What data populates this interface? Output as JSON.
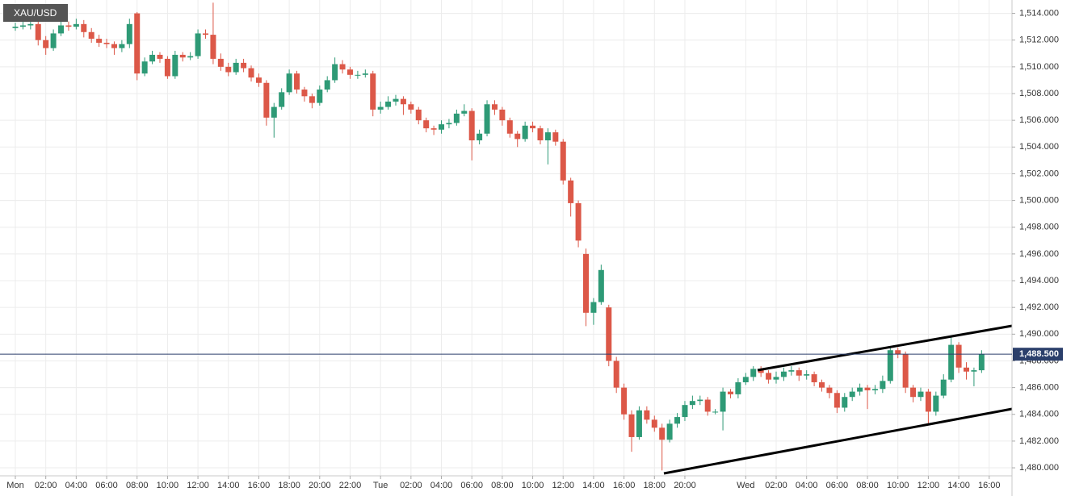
{
  "chart_data": {
    "type": "candlestick",
    "title": "XAU/USD",
    "up_color": "#2e9a76",
    "down_color": "#dc5848",
    "grid": true,
    "categories": [
      "Mon",
      null,
      null,
      null,
      "02:00",
      null,
      null,
      null,
      "04:00",
      null,
      null,
      null,
      "06:00",
      null,
      null,
      null,
      "08:00",
      null,
      null,
      null,
      "10:00",
      null,
      null,
      null,
      "12:00",
      null,
      null,
      null,
      "14:00",
      null,
      null,
      null,
      "16:00",
      null,
      null,
      null,
      "18:00",
      null,
      null,
      null,
      "20:00",
      null,
      null,
      null,
      "22:00",
      null,
      null,
      null,
      "Tue",
      null,
      null,
      null,
      "02:00",
      null,
      null,
      null,
      "04:00",
      null,
      null,
      null,
      "06:00",
      null,
      null,
      null,
      "08:00",
      null,
      null,
      null,
      "10:00",
      null,
      null,
      null,
      "12:00",
      null,
      null,
      null,
      "14:00",
      null,
      null,
      null,
      "16:00",
      null,
      null,
      null,
      "18:00",
      null,
      null,
      null,
      "20:00",
      null,
      null,
      null,
      null,
      null,
      null,
      null,
      "Wed",
      null,
      null,
      null,
      "02:00",
      null,
      null,
      null,
      "04:00",
      null,
      null,
      null,
      "06:00",
      null,
      null,
      null,
      "08:00",
      null,
      null,
      null,
      "10:00",
      null,
      null,
      null,
      "12:00",
      null,
      null,
      null,
      "14:00",
      null,
      null,
      null,
      "16:00"
    ],
    "open": [
      1512.9,
      1513.0,
      1513.1,
      1513.2,
      1512.0,
      1511.4,
      1512.5,
      1513.1,
      1513.0,
      1513.2,
      1512.6,
      1512.1,
      1511.8,
      1511.7,
      1511.4,
      1511.7,
      1514.0,
      1509.5,
      1510.4,
      1510.9,
      1510.6,
      1509.3,
      1510.9,
      1510.7,
      1510.8,
      1512.5,
      1512.4,
      1510.6,
      1510.0,
      1509.6,
      1510.3,
      1509.9,
      1509.2,
      1508.8,
      1506.2,
      1507.0,
      1508.1,
      1509.5,
      1508.3,
      1507.8,
      1507.3,
      1508.3,
      1509.0,
      1510.2,
      1509.8,
      1509.4,
      1509.4,
      1509.5,
      1506.8,
      1507.0,
      1507.4,
      1507.6,
      1507.2,
      1506.8,
      1506.0,
      1505.4,
      1505.3,
      1505.7,
      1505.8,
      1506.5,
      1506.7,
      1504.5,
      1505.0,
      1507.2,
      1506.8,
      1506.0,
      1505.0,
      1504.6,
      1505.6,
      1505.4,
      1504.5,
      1505.1,
      1504.4,
      1501.5,
      1499.8,
      1496.0,
      1491.6,
      1492.4,
      1492.0,
      1488.0,
      1486.0,
      1484.0,
      1482.3,
      1484.3,
      1483.6,
      1483.0,
      1482.1,
      1483.3,
      1483.8,
      1484.7,
      1485.0,
      1485.1,
      1484.2,
      1484.2,
      1485.7,
      1485.5,
      1486.4,
      1486.8,
      1487.4,
      1487.1,
      1486.6,
      1486.8,
      1487.2,
      1487.3,
      1486.9,
      1487.0,
      1486.4,
      1486.0,
      1485.6,
      1484.5,
      1485.3,
      1485.7,
      1486.0,
      1485.8,
      1485.9,
      1486.5,
      1488.8,
      1488.5,
      1486.0,
      1485.3,
      1485.7,
      1484.2,
      1485.4,
      1486.6,
      1489.2,
      1487.5,
      1487.2,
      1487.3,
      null
    ],
    "high": [
      1513.3,
      1513.4,
      1513.5,
      1513.5,
      1512.3,
      1512.8,
      1513.6,
      1513.4,
      1513.6,
      1513.5,
      1512.9,
      1512.4,
      1512.1,
      1511.9,
      1512.0,
      1513.6,
      1514.1,
      1510.7,
      1511.2,
      1511.1,
      1510.8,
      1511.2,
      1511.1,
      1511.1,
      1512.8,
      1512.8,
      1514.8,
      1511.0,
      1510.3,
      1510.6,
      1510.6,
      1510.1,
      1509.5,
      1509.0,
      1507.3,
      1508.4,
      1509.8,
      1509.7,
      1508.5,
      1508.0,
      1508.6,
      1509.3,
      1510.7,
      1510.5,
      1510.0,
      1509.7,
      1509.8,
      1509.7,
      1507.4,
      1507.8,
      1507.9,
      1507.8,
      1507.4,
      1507.0,
      1506.2,
      1505.6,
      1506.0,
      1506.1,
      1506.8,
      1507.2,
      1506.9,
      1505.3,
      1507.5,
      1507.5,
      1507.0,
      1506.2,
      1505.2,
      1505.9,
      1505.9,
      1505.6,
      1505.4,
      1505.3,
      1504.6,
      1501.7,
      1500.0,
      1496.4,
      1492.7,
      1495.2,
      1492.2,
      1488.3,
      1486.3,
      1484.3,
      1484.6,
      1484.6,
      1483.9,
      1483.3,
      1483.6,
      1484.1,
      1485.0,
      1485.4,
      1485.4,
      1485.3,
      1484.4,
      1486.0,
      1485.9,
      1486.7,
      1487.1,
      1487.6,
      1487.6,
      1487.3,
      1487.2,
      1487.5,
      1487.6,
      1487.5,
      1487.3,
      1487.2,
      1486.6,
      1486.2,
      1485.8,
      1485.6,
      1486.0,
      1486.3,
      1486.2,
      1486.2,
      1486.9,
      1489.0,
      1489.0,
      1488.7,
      1486.2,
      1486.0,
      1485.9,
      1485.7,
      1487.0,
      1489.9,
      1489.4,
      1487.9,
      1487.5,
      1488.8,
      null
    ],
    "low": [
      1512.7,
      1512.8,
      1512.8,
      1511.6,
      1510.9,
      1511.2,
      1512.3,
      1512.7,
      1512.8,
      1512.2,
      1511.8,
      1511.5,
      1511.4,
      1510.9,
      1511.1,
      1511.4,
      1509.0,
      1509.3,
      1510.2,
      1510.3,
      1509.1,
      1509.1,
      1510.4,
      1510.5,
      1510.6,
      1512.1,
      1510.2,
      1509.7,
      1509.3,
      1509.4,
      1509.6,
      1508.9,
      1508.5,
      1505.6,
      1504.7,
      1506.8,
      1507.9,
      1508.0,
      1507.4,
      1506.9,
      1507.1,
      1508.1,
      1508.8,
      1509.5,
      1509.1,
      1509.1,
      1509.2,
      1506.3,
      1506.5,
      1506.8,
      1507.1,
      1506.4,
      1506.5,
      1505.7,
      1505.1,
      1504.9,
      1505.0,
      1505.4,
      1505.6,
      1506.3,
      1503.0,
      1504.2,
      1504.8,
      1506.4,
      1505.6,
      1504.7,
      1504.0,
      1504.4,
      1505.1,
      1504.2,
      1502.7,
      1504.1,
      1501.2,
      1498.8,
      1496.5,
      1490.6,
      1490.7,
      1492.2,
      1487.6,
      1485.6,
      1483.6,
      1481.2,
      1482.1,
      1483.3,
      1482.7,
      1479.8,
      1481.9,
      1483.0,
      1483.5,
      1484.4,
      1484.7,
      1483.9,
      1484.0,
      1482.8,
      1485.2,
      1485.2,
      1486.2,
      1486.5,
      1486.8,
      1486.3,
      1486.3,
      1486.5,
      1486.9,
      1486.5,
      1486.6,
      1486.1,
      1485.7,
      1485.2,
      1484.1,
      1484.2,
      1485.0,
      1485.4,
      1484.4,
      1485.5,
      1485.6,
      1486.3,
      1488.2,
      1485.6,
      1484.9,
      1485.0,
      1483.3,
      1483.9,
      1485.2,
      1486.4,
      1487.1,
      1486.6,
      1486.1,
      1487.1,
      null
    ],
    "close": [
      1513.0,
      1513.1,
      1513.2,
      1512.0,
      1511.4,
      1512.5,
      1513.1,
      1513.0,
      1513.2,
      1512.6,
      1512.1,
      1511.8,
      1511.7,
      1511.4,
      1511.7,
      1513.2,
      1509.5,
      1510.4,
      1510.9,
      1510.6,
      1509.3,
      1510.9,
      1510.7,
      1510.8,
      1512.5,
      1512.4,
      1510.6,
      1510.0,
      1509.6,
      1510.3,
      1509.9,
      1509.2,
      1508.8,
      1506.2,
      1507.0,
      1508.1,
      1509.5,
      1508.3,
      1507.8,
      1507.3,
      1508.3,
      1509.0,
      1510.2,
      1509.8,
      1509.4,
      1509.4,
      1509.5,
      1506.8,
      1507.0,
      1507.4,
      1507.6,
      1507.2,
      1506.8,
      1506.0,
      1505.4,
      1505.3,
      1505.7,
      1505.8,
      1506.5,
      1506.7,
      1504.5,
      1505.0,
      1507.2,
      1506.8,
      1506.0,
      1505.0,
      1504.6,
      1505.6,
      1505.4,
      1504.5,
      1505.1,
      1504.4,
      1501.5,
      1499.8,
      1497.0,
      1491.6,
      1492.4,
      1494.8,
      1488.0,
      1486.0,
      1484.0,
      1482.3,
      1484.3,
      1483.6,
      1483.0,
      1482.1,
      1483.3,
      1483.8,
      1484.7,
      1485.0,
      1485.1,
      1484.2,
      1484.2,
      1485.7,
      1485.5,
      1486.4,
      1486.8,
      1487.4,
      1487.1,
      1486.6,
      1486.8,
      1487.2,
      1487.3,
      1486.9,
      1487.0,
      1486.4,
      1486.0,
      1485.6,
      1484.5,
      1485.3,
      1485.7,
      1486.0,
      1485.8,
      1485.9,
      1486.5,
      1488.8,
      1488.5,
      1486.0,
      1485.3,
      1485.7,
      1484.2,
      1485.4,
      1486.6,
      1489.2,
      1487.5,
      1487.2,
      1487.3,
      1488.5,
      null
    ],
    "last_price": {
      "value": 1488.5,
      "label": "1,488.500"
    },
    "ylim": [
      1479.4,
      1515.0
    ],
    "yticks": [
      {
        "value": 1480,
        "label": "1,480.000"
      },
      {
        "value": 1482,
        "label": "1,482.000"
      },
      {
        "value": 1484,
        "label": "1,484.000"
      },
      {
        "value": 1486,
        "label": "1,486.000"
      },
      {
        "value": 1488,
        "label": "1,488.000"
      },
      {
        "value": 1490,
        "label": "1,490.000"
      },
      {
        "value": 1492,
        "label": "1,492.000"
      },
      {
        "value": 1494,
        "label": "1,494.000"
      },
      {
        "value": 1496,
        "label": "1,496.000"
      },
      {
        "value": 1498,
        "label": "1,498.000"
      },
      {
        "value": 1500,
        "label": "1,500.000"
      },
      {
        "value": 1502,
        "label": "1,502.000"
      },
      {
        "value": 1504,
        "label": "1,504.000"
      },
      {
        "value": 1506,
        "label": "1,506.000"
      },
      {
        "value": 1508,
        "label": "1,508.000"
      },
      {
        "value": 1510,
        "label": "1,510.000"
      },
      {
        "value": 1512,
        "label": "1,512.000"
      },
      {
        "value": 1514,
        "label": "1,514.000"
      }
    ]
  }
}
